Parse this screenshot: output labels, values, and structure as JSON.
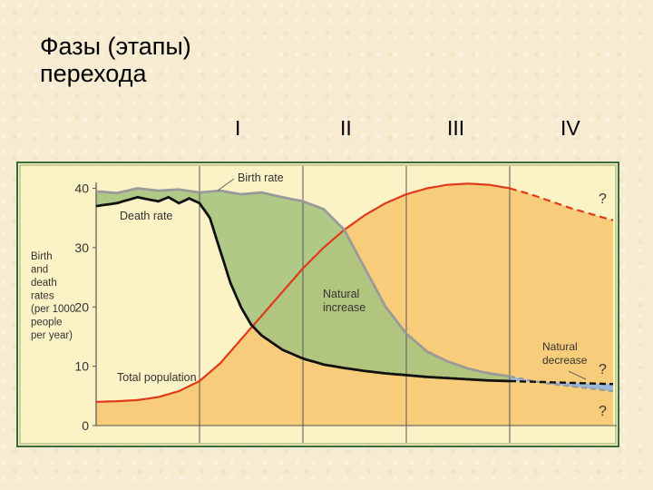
{
  "slide": {
    "title": "Фазы (этапы)\nперехода",
    "phases": [
      "I",
      "II",
      "III",
      "IV"
    ]
  },
  "chart_data": {
    "type": "line",
    "ylabel": "Birth\nand\ndeath\nrates\n(per 1000\npeople\nper year)",
    "yticks": [
      0,
      10,
      20,
      30,
      40
    ],
    "ylim": [
      0,
      41
    ],
    "xlim": [
      0,
      100
    ],
    "grid": false,
    "annotations": [
      {
        "text": "Birth rate",
        "role": "series-label"
      },
      {
        "text": "Death rate",
        "role": "series-label"
      },
      {
        "text": "Total population",
        "role": "series-label"
      },
      {
        "text": "Natural\nincrease",
        "role": "area-label"
      },
      {
        "text": "Natural\ndecrease",
        "role": "area-label"
      },
      {
        "text": "?",
        "role": "question"
      },
      {
        "text": "?",
        "role": "question"
      },
      {
        "text": "?",
        "role": "question"
      }
    ],
    "stage_boundaries_x": [
      20,
      40,
      60,
      80
    ],
    "series": [
      {
        "name": "Birth rate",
        "color": "#9a9a9a",
        "x": [
          0,
          4,
          8,
          12,
          16,
          20,
          24,
          28,
          32,
          36,
          40,
          44,
          48,
          52,
          56,
          60,
          64,
          68,
          72,
          76,
          80,
          84,
          88,
          92,
          96,
          100
        ],
        "y": [
          39.5,
          39.2,
          40.0,
          39.6,
          39.8,
          39.3,
          39.6,
          39.0,
          39.3,
          38.5,
          37.8,
          36.5,
          33.0,
          26.5,
          20.0,
          15.5,
          12.5,
          10.8,
          9.6,
          8.8,
          8.3,
          7.6,
          7.0,
          6.6,
          6.2,
          5.8
        ]
      },
      {
        "name": "Death rate",
        "color": "#111111",
        "x": [
          0,
          4,
          8,
          12,
          14,
          16,
          18,
          20,
          22,
          24,
          26,
          28,
          30,
          32,
          36,
          40,
          44,
          48,
          52,
          56,
          60,
          64,
          68,
          72,
          76,
          80,
          84,
          88,
          92,
          96,
          100
        ],
        "y": [
          37.0,
          37.5,
          38.5,
          37.8,
          38.5,
          37.5,
          38.3,
          37.5,
          35.0,
          29.5,
          24.0,
          20.0,
          17.0,
          15.2,
          12.8,
          11.3,
          10.3,
          9.7,
          9.2,
          8.8,
          8.5,
          8.2,
          8.0,
          7.8,
          7.6,
          7.5,
          7.4,
          7.3,
          7.2,
          7.1,
          7.0
        ]
      },
      {
        "name": "Total population",
        "color": "#e03a1a",
        "x": [
          0,
          4,
          8,
          12,
          16,
          20,
          24,
          28,
          32,
          36,
          40,
          44,
          48,
          52,
          56,
          60,
          64,
          68,
          72,
          76,
          80,
          84,
          88,
          92,
          96,
          100
        ],
        "y": [
          4.0,
          4.1,
          4.3,
          4.8,
          5.8,
          7.5,
          10.5,
          14.5,
          18.5,
          22.5,
          26.5,
          30.0,
          33.0,
          35.5,
          37.5,
          39.0,
          40.0,
          40.6,
          40.8,
          40.6,
          40.0,
          39.0,
          37.8,
          36.6,
          35.6,
          34.6
        ]
      }
    ]
  }
}
